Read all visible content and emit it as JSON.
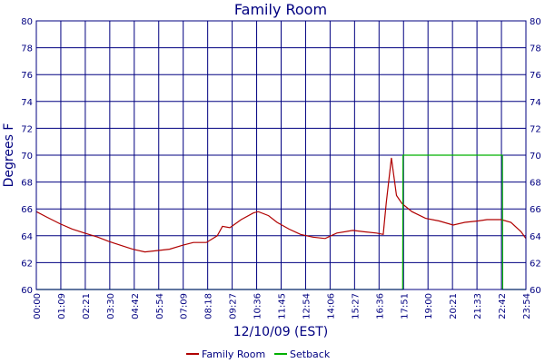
{
  "chart_data": {
    "type": "line",
    "title": "Family Room",
    "xlabel": "12/10/09 (EST)",
    "ylabel": "Degrees F",
    "ylim": [
      60,
      80
    ],
    "yticks": [
      60,
      62,
      64,
      66,
      68,
      70,
      72,
      74,
      76,
      78,
      80
    ],
    "x_ticks": [
      "00:00",
      "01:09",
      "02:21",
      "03:30",
      "04:42",
      "05:54",
      "07:09",
      "08:18",
      "09:27",
      "10:36",
      "11:45",
      "12:54",
      "14:06",
      "15:27",
      "16:36",
      "17:51",
      "19:00",
      "20:21",
      "21:33",
      "22:42",
      "23:54"
    ],
    "grid": true,
    "legend_position": "bottom",
    "series": [
      {
        "name": "Family Room",
        "color": "#b00000",
        "x": [
          "00:00",
          "00:30",
          "01:09",
          "01:45",
          "02:21",
          "03:00",
          "03:30",
          "04:06",
          "04:42",
          "05:18",
          "05:54",
          "06:30",
          "07:09",
          "07:40",
          "08:18",
          "08:50",
          "09:05",
          "09:27",
          "10:00",
          "10:36",
          "10:50",
          "11:20",
          "11:45",
          "12:20",
          "12:54",
          "13:30",
          "14:06",
          "14:40",
          "15:27",
          "16:00",
          "16:36",
          "16:56",
          "17:05",
          "17:20",
          "17:35",
          "17:51",
          "18:20",
          "19:00",
          "19:40",
          "20:21",
          "20:55",
          "21:33",
          "22:00",
          "22:42",
          "23:10",
          "23:40",
          "23:54"
        ],
        "values": [
          65.8,
          65.4,
          64.9,
          64.5,
          64.2,
          63.9,
          63.6,
          63.3,
          63.0,
          62.8,
          62.9,
          63.0,
          63.3,
          63.5,
          63.5,
          64.0,
          64.7,
          64.6,
          65.2,
          65.7,
          65.8,
          65.5,
          65.0,
          64.5,
          64.1,
          63.9,
          63.8,
          64.2,
          64.4,
          64.3,
          64.2,
          64.1,
          66.5,
          69.8,
          67.0,
          66.4,
          65.8,
          65.3,
          65.1,
          64.8,
          65.0,
          65.1,
          65.2,
          65.2,
          65.0,
          64.3,
          63.8
        ]
      },
      {
        "name": "Setback",
        "color": "#00b000",
        "x": [
          "00:00",
          "17:53",
          "17:54",
          "22:45",
          "22:46",
          "23:54"
        ],
        "values": [
          60,
          60,
          70,
          70,
          60,
          60
        ]
      }
    ]
  }
}
